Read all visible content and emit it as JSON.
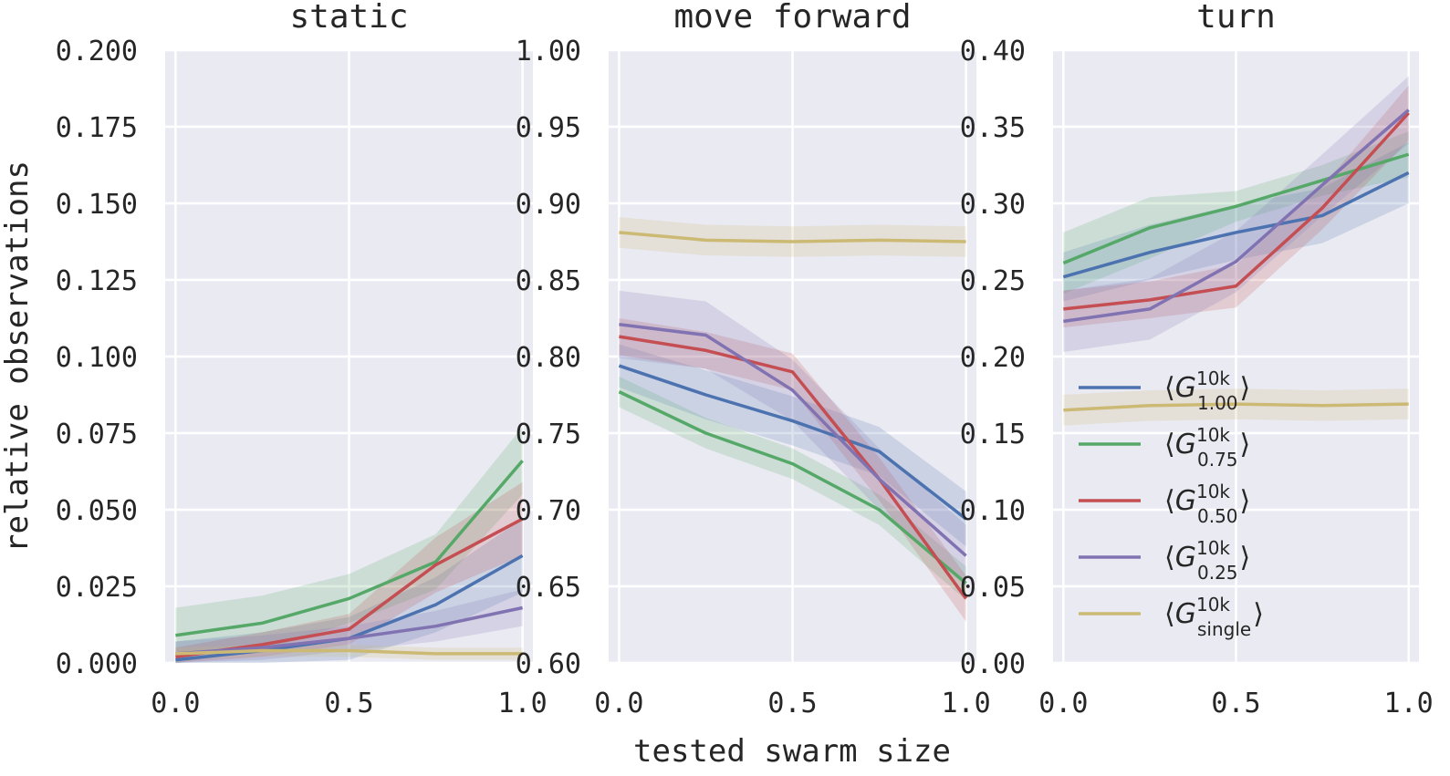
{
  "chart_data": [
    {
      "type": "line",
      "title": "static",
      "ylabel": "relative observations",
      "ylim": [
        0.0,
        0.2
      ],
      "xlim": [
        -0.03,
        1.03
      ],
      "xticks": [
        "0.0",
        "0.5",
        "1.0"
      ],
      "yticks": [
        "0.000",
        "0.025",
        "0.050",
        "0.075",
        "0.100",
        "0.125",
        "0.150",
        "0.175",
        "0.200"
      ],
      "x": [
        0.0,
        0.25,
        0.5,
        0.75,
        1.0
      ],
      "series": [
        {
          "key": "1.00",
          "color": "#4c72b0",
          "values": [
            0.001,
            0.004,
            0.008,
            0.019,
            0.035
          ],
          "band": [
            0.006,
            0.006,
            0.007,
            0.009,
            0.012
          ]
        },
        {
          "key": "0.75",
          "color": "#55a868",
          "values": [
            0.009,
            0.013,
            0.021,
            0.033,
            0.066
          ],
          "band": [
            0.009,
            0.009,
            0.008,
            0.009,
            0.011
          ]
        },
        {
          "key": "0.50",
          "color": "#c44e52",
          "values": [
            0.002,
            0.006,
            0.011,
            0.032,
            0.047
          ],
          "band": [
            0.003,
            0.004,
            0.005,
            0.009,
            0.012
          ]
        },
        {
          "key": "0.25",
          "color": "#8172b2",
          "values": [
            0.003,
            0.005,
            0.008,
            0.012,
            0.018
          ],
          "band": [
            0.004,
            0.004,
            0.004,
            0.005,
            0.006
          ]
        },
        {
          "key": "single",
          "color": "#ccb974",
          "values": [
            0.003,
            0.004,
            0.004,
            0.003,
            0.003
          ],
          "band": [
            0.002,
            0.002,
            0.002,
            0.002,
            0.002
          ]
        }
      ]
    },
    {
      "type": "line",
      "title": "move forward",
      "ylim": [
        0.6,
        1.0
      ],
      "xlim": [
        -0.03,
        1.03
      ],
      "xticks": [
        "0.0",
        "0.5",
        "1.0"
      ],
      "yticks": [
        "0.60",
        "0.65",
        "0.70",
        "0.75",
        "0.80",
        "0.85",
        "0.90",
        "0.95",
        "1.00"
      ],
      "x": [
        0.0,
        0.25,
        0.5,
        0.75,
        1.0
      ],
      "series": [
        {
          "key": "1.00",
          "color": "#4c72b0",
          "values": [
            0.794,
            0.775,
            0.758,
            0.738,
            0.694
          ],
          "band": [
            0.014,
            0.016,
            0.016,
            0.016,
            0.018
          ]
        },
        {
          "key": "0.75",
          "color": "#55a868",
          "values": [
            0.777,
            0.75,
            0.73,
            0.7,
            0.652
          ],
          "band": [
            0.01,
            0.01,
            0.01,
            0.01,
            0.011
          ]
        },
        {
          "key": "0.50",
          "color": "#c44e52",
          "values": [
            0.813,
            0.804,
            0.79,
            0.72,
            0.642
          ],
          "band": [
            0.012,
            0.012,
            0.012,
            0.014,
            0.015
          ]
        },
        {
          "key": "0.25",
          "color": "#8172b2",
          "values": [
            0.821,
            0.814,
            0.778,
            0.72,
            0.67
          ],
          "band": [
            0.022,
            0.022,
            0.02,
            0.02,
            0.02
          ]
        },
        {
          "key": "single",
          "color": "#ccb974",
          "values": [
            0.881,
            0.876,
            0.875,
            0.876,
            0.875
          ],
          "band": [
            0.01,
            0.01,
            0.01,
            0.01,
            0.01
          ]
        }
      ]
    },
    {
      "type": "line",
      "title": "turn",
      "ylim": [
        0.0,
        0.4
      ],
      "xlim": [
        -0.03,
        1.03
      ],
      "xticks": [
        "0.0",
        "0.5",
        "1.0"
      ],
      "yticks": [
        "0.00",
        "0.05",
        "0.10",
        "0.15",
        "0.20",
        "0.25",
        "0.30",
        "0.35",
        "0.40"
      ],
      "x": [
        0.0,
        0.25,
        0.5,
        0.75,
        1.0
      ],
      "series": [
        {
          "key": "1.00",
          "color": "#4c72b0",
          "values": [
            0.252,
            0.268,
            0.281,
            0.292,
            0.32
          ],
          "band": [
            0.016,
            0.018,
            0.018,
            0.018,
            0.02
          ]
        },
        {
          "key": "0.75",
          "color": "#55a868",
          "values": [
            0.261,
            0.284,
            0.298,
            0.315,
            0.332
          ],
          "band": [
            0.02,
            0.02,
            0.01,
            0.01,
            0.015
          ]
        },
        {
          "key": "0.50",
          "color": "#c44e52",
          "values": [
            0.231,
            0.237,
            0.246,
            0.297,
            0.359
          ],
          "band": [
            0.012,
            0.012,
            0.014,
            0.014,
            0.018
          ]
        },
        {
          "key": "0.25",
          "color": "#8172b2",
          "values": [
            0.223,
            0.231,
            0.262,
            0.312,
            0.361
          ],
          "band": [
            0.02,
            0.02,
            0.02,
            0.02,
            0.022
          ]
        },
        {
          "key": "single",
          "color": "#ccb974",
          "values": [
            0.165,
            0.168,
            0.169,
            0.168,
            0.169
          ],
          "band": [
            0.01,
            0.01,
            0.01,
            0.01,
            0.01
          ]
        }
      ]
    }
  ],
  "xlabel": "tested swarm size",
  "legend": {
    "placement": "center-left of turn panel",
    "entries": [
      {
        "key": "1.00",
        "color": "#4c72b0",
        "base": "G",
        "superscript": "10k",
        "subscript": "1.00"
      },
      {
        "key": "0.75",
        "color": "#55a868",
        "base": "G",
        "superscript": "10k",
        "subscript": "0.75"
      },
      {
        "key": "0.50",
        "color": "#c44e52",
        "base": "G",
        "superscript": "10k",
        "subscript": "0.50"
      },
      {
        "key": "0.25",
        "color": "#8172b2",
        "base": "G",
        "superscript": "10k",
        "subscript": "0.25"
      },
      {
        "key": "single",
        "color": "#ccb974",
        "base": "G",
        "superscript": "10k",
        "subscript": "single"
      }
    ]
  },
  "style": {
    "background": "#eaeaf2",
    "grid": "#ffffff",
    "text": "#262626"
  }
}
